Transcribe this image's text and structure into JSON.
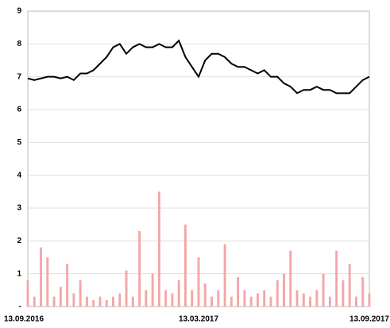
{
  "chart_data": {
    "type": "combo",
    "categories": [
      "13.09.2016",
      null,
      null,
      null,
      null,
      null,
      null,
      null,
      null,
      null,
      null,
      null,
      null,
      null,
      null,
      null,
      null,
      null,
      null,
      null,
      null,
      null,
      null,
      null,
      null,
      null,
      "13.03.2017",
      null,
      null,
      null,
      null,
      null,
      null,
      null,
      null,
      null,
      null,
      null,
      null,
      null,
      null,
      null,
      null,
      null,
      null,
      null,
      null,
      null,
      null,
      null,
      null,
      null,
      "13.09.2017"
    ],
    "series": [
      {
        "type": "bar",
        "color": "#f4a6a6",
        "values": [
          0.8,
          0.3,
          1.8,
          1.5,
          0.3,
          0.6,
          1.3,
          0.4,
          0.8,
          0.3,
          0.2,
          0.3,
          0.2,
          0.3,
          0.4,
          1.1,
          0.3,
          2.3,
          0.5,
          1.0,
          3.5,
          0.5,
          0.4,
          0.8,
          2.5,
          0.5,
          1.5,
          0.7,
          0.3,
          0.5,
          1.9,
          0.3,
          0.9,
          0.5,
          0.3,
          0.4,
          0.5,
          0.3,
          0.8,
          1.0,
          1.7,
          0.5,
          0.4,
          0.3,
          0.5,
          1.0,
          0.3,
          1.7,
          0.8,
          1.3,
          0.3,
          0.9,
          0.4
        ]
      },
      {
        "type": "line",
        "color": "#000000",
        "values": [
          6.95,
          6.9,
          6.95,
          7.0,
          7.0,
          6.95,
          7.0,
          6.9,
          7.1,
          7.1,
          7.2,
          7.4,
          7.6,
          7.9,
          8.0,
          7.7,
          7.9,
          8.0,
          7.9,
          7.9,
          8.0,
          7.9,
          7.9,
          8.1,
          7.6,
          7.3,
          7.0,
          7.5,
          7.7,
          7.7,
          7.6,
          7.4,
          7.3,
          7.3,
          7.2,
          7.1,
          7.2,
          7.0,
          7.0,
          6.8,
          6.7,
          6.5,
          6.6,
          6.6,
          6.7,
          6.6,
          6.6,
          6.5,
          6.5,
          6.5,
          6.7,
          6.9,
          7.0
        ]
      }
    ],
    "ylim": [
      0,
      9
    ],
    "yticks": [
      {
        "value": 0,
        "label": "-"
      },
      1,
      2,
      3,
      4,
      5,
      6,
      7,
      8,
      9
    ],
    "grid": true
  }
}
